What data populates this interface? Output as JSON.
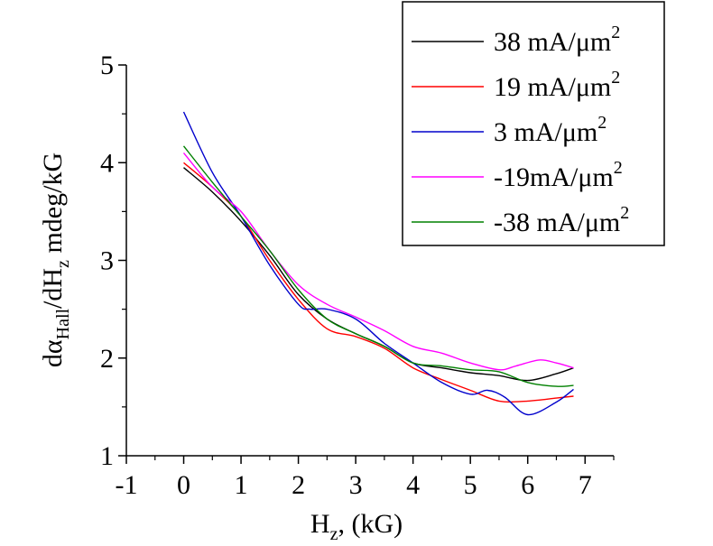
{
  "chart_data": {
    "type": "line",
    "xlabel": {
      "main": "H",
      "sub": "z",
      "rest": ", (kG)"
    },
    "ylabel": {
      "p1": "dα",
      "sub1": "Hall",
      "p2": "/dH",
      "sub2": "z",
      "p3": " mdeg/kG"
    },
    "xlim": [
      -1,
      7.5
    ],
    "ylim": [
      1,
      5
    ],
    "x_ticks": [
      -1,
      0,
      1,
      2,
      3,
      4,
      5,
      6,
      7
    ],
    "y_ticks": [
      1,
      2,
      3,
      4,
      5
    ],
    "grid": false,
    "legend_position": "top-right",
    "series": [
      {
        "name": "38 mA/μm2",
        "label_main": "38 mA/μm",
        "label_sup": "2",
        "color": "#000000",
        "x": [
          0,
          0.5,
          1,
          1.5,
          2,
          2.5,
          3,
          3.5,
          4,
          4.5,
          5,
          5.5,
          6,
          6.5,
          6.8
        ],
        "y": [
          3.95,
          3.7,
          3.4,
          3.05,
          2.65,
          2.4,
          2.25,
          2.12,
          1.95,
          1.9,
          1.85,
          1.82,
          1.77,
          1.84,
          1.9
        ]
      },
      {
        "name": "19 mA/μm2",
        "label_main": "19 mA/μm",
        "label_sup": "2",
        "color": "#ff0000",
        "x": [
          0,
          0.5,
          1,
          1.5,
          2,
          2.5,
          3,
          3.5,
          4,
          4.5,
          5,
          5.5,
          6,
          6.5,
          6.8
        ],
        "y": [
          4.0,
          3.75,
          3.45,
          3.0,
          2.6,
          2.3,
          2.22,
          2.1,
          1.9,
          1.78,
          1.67,
          1.56,
          1.56,
          1.59,
          1.61
        ]
      },
      {
        "name": "3 mA/μm2",
        "label_main": "3 mA/μm",
        "label_sup": "2",
        "color": "#0000cc",
        "x": [
          0,
          0.5,
          1,
          1.5,
          2,
          2.2,
          2.5,
          3,
          3.5,
          4,
          4.5,
          5,
          5.3,
          5.6,
          6,
          6.5,
          6.8
        ],
        "y": [
          4.52,
          3.9,
          3.45,
          2.95,
          2.55,
          2.5,
          2.5,
          2.4,
          2.15,
          1.95,
          1.75,
          1.63,
          1.67,
          1.6,
          1.42,
          1.55,
          1.68
        ]
      },
      {
        "name": "-19mA/μm2",
        "label_main": "-19mA/μm",
        "label_sup": "2",
        "color": "#ff00ff",
        "x": [
          0,
          0.5,
          1,
          1.5,
          2,
          2.5,
          3,
          3.5,
          4,
          4.5,
          5,
          5.5,
          5.8,
          6.2,
          6.5,
          6.8
        ],
        "y": [
          4.1,
          3.75,
          3.5,
          3.1,
          2.75,
          2.55,
          2.42,
          2.28,
          2.12,
          2.05,
          1.95,
          1.88,
          1.92,
          1.98,
          1.95,
          1.9
        ]
      },
      {
        "name": "-38 mA/μm2",
        "label_main": "-38 mA/μm",
        "label_sup": "2",
        "color": "#008000",
        "x": [
          0,
          0.5,
          1,
          1.5,
          2,
          2.5,
          3,
          3.5,
          4,
          4.5,
          5,
          5.5,
          6,
          6.5,
          6.8
        ],
        "y": [
          4.17,
          3.8,
          3.45,
          3.1,
          2.7,
          2.4,
          2.25,
          2.12,
          1.95,
          1.92,
          1.88,
          1.86,
          1.75,
          1.71,
          1.72
        ]
      }
    ]
  }
}
